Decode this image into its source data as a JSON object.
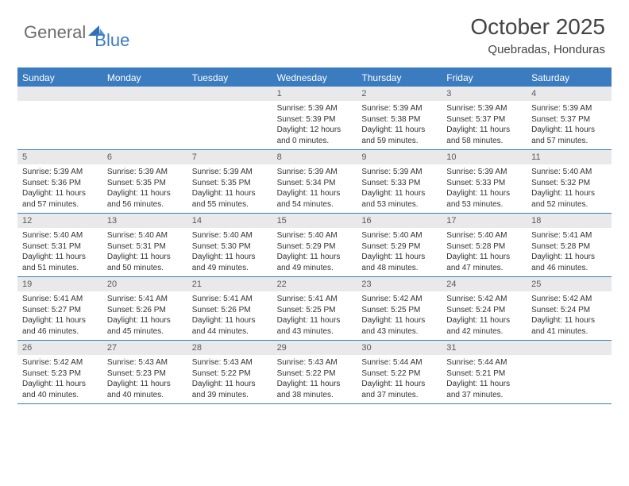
{
  "brand": {
    "general": "General",
    "blue": "Blue"
  },
  "title": "October 2025",
  "location": "Quebradas, Honduras",
  "colors": {
    "accent": "#3b7bbf",
    "header_bg": "#3b7bbf",
    "daynum_bg": "#e9e9ec",
    "text": "#333333",
    "logo_gray": "#6b6b6b"
  },
  "days_of_week": [
    "Sunday",
    "Monday",
    "Tuesday",
    "Wednesday",
    "Thursday",
    "Friday",
    "Saturday"
  ],
  "weeks": [
    [
      {
        "empty": true
      },
      {
        "empty": true
      },
      {
        "empty": true
      },
      {
        "n": "1",
        "sr": "5:39 AM",
        "ss": "5:39 PM",
        "dl": "12 hours and 0 minutes."
      },
      {
        "n": "2",
        "sr": "5:39 AM",
        "ss": "5:38 PM",
        "dl": "11 hours and 59 minutes."
      },
      {
        "n": "3",
        "sr": "5:39 AM",
        "ss": "5:37 PM",
        "dl": "11 hours and 58 minutes."
      },
      {
        "n": "4",
        "sr": "5:39 AM",
        "ss": "5:37 PM",
        "dl": "11 hours and 57 minutes."
      }
    ],
    [
      {
        "n": "5",
        "sr": "5:39 AM",
        "ss": "5:36 PM",
        "dl": "11 hours and 57 minutes."
      },
      {
        "n": "6",
        "sr": "5:39 AM",
        "ss": "5:35 PM",
        "dl": "11 hours and 56 minutes."
      },
      {
        "n": "7",
        "sr": "5:39 AM",
        "ss": "5:35 PM",
        "dl": "11 hours and 55 minutes."
      },
      {
        "n": "8",
        "sr": "5:39 AM",
        "ss": "5:34 PM",
        "dl": "11 hours and 54 minutes."
      },
      {
        "n": "9",
        "sr": "5:39 AM",
        "ss": "5:33 PM",
        "dl": "11 hours and 53 minutes."
      },
      {
        "n": "10",
        "sr": "5:39 AM",
        "ss": "5:33 PM",
        "dl": "11 hours and 53 minutes."
      },
      {
        "n": "11",
        "sr": "5:40 AM",
        "ss": "5:32 PM",
        "dl": "11 hours and 52 minutes."
      }
    ],
    [
      {
        "n": "12",
        "sr": "5:40 AM",
        "ss": "5:31 PM",
        "dl": "11 hours and 51 minutes."
      },
      {
        "n": "13",
        "sr": "5:40 AM",
        "ss": "5:31 PM",
        "dl": "11 hours and 50 minutes."
      },
      {
        "n": "14",
        "sr": "5:40 AM",
        "ss": "5:30 PM",
        "dl": "11 hours and 49 minutes."
      },
      {
        "n": "15",
        "sr": "5:40 AM",
        "ss": "5:29 PM",
        "dl": "11 hours and 49 minutes."
      },
      {
        "n": "16",
        "sr": "5:40 AM",
        "ss": "5:29 PM",
        "dl": "11 hours and 48 minutes."
      },
      {
        "n": "17",
        "sr": "5:40 AM",
        "ss": "5:28 PM",
        "dl": "11 hours and 47 minutes."
      },
      {
        "n": "18",
        "sr": "5:41 AM",
        "ss": "5:28 PM",
        "dl": "11 hours and 46 minutes."
      }
    ],
    [
      {
        "n": "19",
        "sr": "5:41 AM",
        "ss": "5:27 PM",
        "dl": "11 hours and 46 minutes."
      },
      {
        "n": "20",
        "sr": "5:41 AM",
        "ss": "5:26 PM",
        "dl": "11 hours and 45 minutes."
      },
      {
        "n": "21",
        "sr": "5:41 AM",
        "ss": "5:26 PM",
        "dl": "11 hours and 44 minutes."
      },
      {
        "n": "22",
        "sr": "5:41 AM",
        "ss": "5:25 PM",
        "dl": "11 hours and 43 minutes."
      },
      {
        "n": "23",
        "sr": "5:42 AM",
        "ss": "5:25 PM",
        "dl": "11 hours and 43 minutes."
      },
      {
        "n": "24",
        "sr": "5:42 AM",
        "ss": "5:24 PM",
        "dl": "11 hours and 42 minutes."
      },
      {
        "n": "25",
        "sr": "5:42 AM",
        "ss": "5:24 PM",
        "dl": "11 hours and 41 minutes."
      }
    ],
    [
      {
        "n": "26",
        "sr": "5:42 AM",
        "ss": "5:23 PM",
        "dl": "11 hours and 40 minutes."
      },
      {
        "n": "27",
        "sr": "5:43 AM",
        "ss": "5:23 PM",
        "dl": "11 hours and 40 minutes."
      },
      {
        "n": "28",
        "sr": "5:43 AM",
        "ss": "5:22 PM",
        "dl": "11 hours and 39 minutes."
      },
      {
        "n": "29",
        "sr": "5:43 AM",
        "ss": "5:22 PM",
        "dl": "11 hours and 38 minutes."
      },
      {
        "n": "30",
        "sr": "5:44 AM",
        "ss": "5:22 PM",
        "dl": "11 hours and 37 minutes."
      },
      {
        "n": "31",
        "sr": "5:44 AM",
        "ss": "5:21 PM",
        "dl": "11 hours and 37 minutes."
      },
      {
        "empty": true
      }
    ]
  ],
  "labels": {
    "sunrise": "Sunrise:",
    "sunset": "Sunset:",
    "daylight": "Daylight:"
  }
}
